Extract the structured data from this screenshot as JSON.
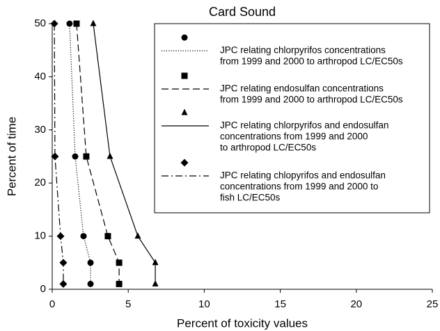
{
  "chart_data": {
    "type": "line",
    "title": "Card Sound",
    "x_label": "Percent of toxicity values",
    "y_label": "Percent of time",
    "xlim": [
      0,
      25
    ],
    "xticks": [
      0,
      5,
      10,
      15,
      20,
      25
    ],
    "ylim": [
      0,
      50
    ],
    "yticks": [
      0,
      10,
      20,
      30,
      40,
      50
    ],
    "legend": "upper right",
    "series": [
      {
        "name": [
          "JPC relating chlorpyrifos concentrations",
          "from 1999 and 2000 to arthropod LC/EC50s"
        ],
        "color": "#000000",
        "marker": "circle",
        "dash": "dotted",
        "x": [
          1.14,
          1.51,
          2.06,
          2.52,
          2.52
        ],
        "values": [
          50,
          25,
          10,
          5,
          1
        ]
      },
      {
        "name": [
          "JPC relating endosulfan concentrations",
          "from 1999 and 2000 to arthropod LC/EC50s"
        ],
        "color": "#000000",
        "marker": "square",
        "dash": "dashed",
        "x": [
          1.6,
          2.24,
          3.66,
          4.4,
          4.4
        ],
        "values": [
          50,
          25,
          10,
          5,
          1
        ]
      },
      {
        "name": [
          "JPC relating chlorpyrifos and endosulfan",
          "concentrations from 1999 and 2000",
          "to arthropod LC/EC50s"
        ],
        "color": "#000000",
        "marker": "triangle",
        "dash": "solid",
        "x": [
          2.7,
          3.8,
          5.63,
          6.78,
          6.78
        ],
        "values": [
          50,
          25,
          10,
          5,
          1
        ]
      },
      {
        "name": [
          "JPC relating chlopyrifos and endosulfan",
          "concentrations from 1999 and 2000 to",
          "fish LC/EC50s"
        ],
        "color": "#000000",
        "marker": "diamond",
        "dash": "dashdot",
        "x": [
          0.14,
          0.18,
          0.55,
          0.73,
          0.73
        ],
        "values": [
          50,
          25,
          10,
          5,
          1
        ]
      }
    ]
  }
}
